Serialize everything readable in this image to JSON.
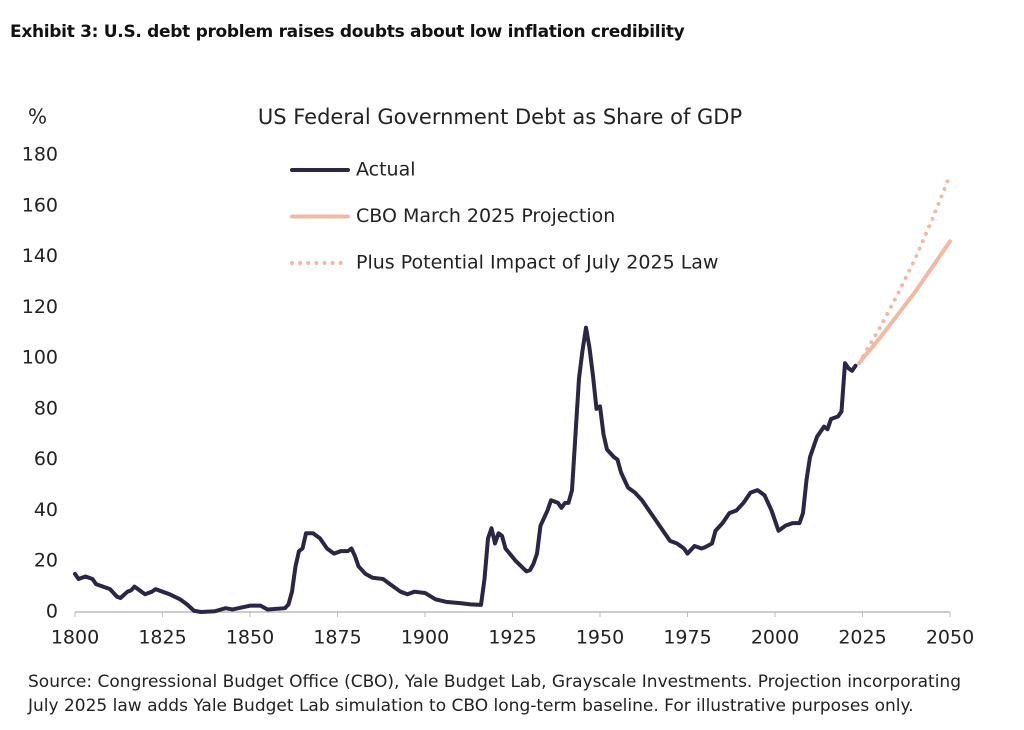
{
  "exhibit_title": "Exhibit 3: U.S. debt problem raises doubts about low inflation credibility",
  "chart_data": {
    "type": "line",
    "title": "US Federal Government Debt as Share of GDP",
    "y_label": "%",
    "xlim": [
      1800,
      2050
    ],
    "xticks": [
      1800,
      1825,
      1850,
      1875,
      1900,
      1925,
      1950,
      1975,
      2000,
      2025,
      2050
    ],
    "ylim": [
      0,
      180
    ],
    "yticks": [
      0,
      20,
      40,
      60,
      80,
      100,
      120,
      140,
      160,
      180
    ],
    "grid": false,
    "legend": "top-left",
    "series": [
      {
        "name": "Actual",
        "color": "#2b2546",
        "style": "solid",
        "x": [
          1800,
          1801,
          1803,
          1805,
          1806,
          1808,
          1810,
          1812,
          1813,
          1815,
          1816,
          1817,
          1818,
          1820,
          1822,
          1823,
          1825,
          1827,
          1830,
          1832,
          1834,
          1836,
          1840,
          1843,
          1845,
          1850,
          1853,
          1855,
          1860,
          1861,
          1862,
          1863,
          1864,
          1865,
          1866,
          1868,
          1870,
          1872,
          1874,
          1876,
          1878,
          1879,
          1880,
          1881,
          1883,
          1885,
          1888,
          1890,
          1893,
          1895,
          1897,
          1900,
          1903,
          1906,
          1910,
          1913,
          1916,
          1917,
          1918,
          1919,
          1920,
          1921,
          1922,
          1923,
          1926,
          1929,
          1930,
          1931,
          1932,
          1933,
          1935,
          1936,
          1938,
          1939,
          1940,
          1941,
          1942,
          1943,
          1944,
          1945,
          1946,
          1947,
          1948,
          1949,
          1950,
          1951,
          1952,
          1954,
          1955,
          1956,
          1957,
          1958,
          1960,
          1962,
          1965,
          1968,
          1970,
          1972,
          1974,
          1975,
          1977,
          1979,
          1980,
          1982,
          1983,
          1985,
          1987,
          1989,
          1991,
          1993,
          1995,
          1997,
          1999,
          2001,
          2003,
          2005,
          2007,
          2008,
          2009,
          2010,
          2012,
          2014,
          2015,
          2016,
          2018,
          2019,
          2020,
          2021,
          2022,
          2023
        ],
        "values": [
          15,
          13,
          14,
          13,
          11,
          10,
          9,
          6,
          5.5,
          8,
          8.5,
          10,
          9,
          7,
          8,
          9,
          8,
          7,
          5,
          3,
          0.5,
          0,
          0.3,
          1.5,
          1,
          2.5,
          2.5,
          1,
          1.5,
          3,
          8,
          18,
          24,
          25,
          31,
          31,
          29,
          25,
          23,
          24,
          24,
          25,
          22,
          18,
          15,
          13.5,
          13,
          11,
          8,
          7,
          8,
          7.5,
          5,
          4,
          3.5,
          3,
          2.8,
          13,
          29,
          33,
          27,
          31,
          30,
          25,
          20,
          16,
          16.5,
          19,
          23,
          34,
          40,
          44,
          43,
          41,
          43,
          43,
          48,
          70,
          92,
          103,
          112,
          104,
          93,
          80,
          81,
          70,
          64,
          61,
          60,
          55,
          52,
          49,
          47,
          44,
          38,
          32,
          28,
          27,
          25,
          23,
          26,
          25,
          25.5,
          27,
          32,
          35,
          39,
          40,
          43,
          47,
          48,
          46,
          40,
          32,
          34,
          35,
          35,
          39,
          52,
          61,
          69,
          73,
          72,
          76,
          77,
          79,
          98,
          96,
          95,
          97
        ]
      },
      {
        "name": "CBO March 2025 Projection",
        "color": "#f2b9a3",
        "style": "solid",
        "x": [
          2024,
          2030,
          2035,
          2040,
          2045,
          2050
        ],
        "values": [
          98,
          108,
          117,
          126,
          136,
          146
        ]
      },
      {
        "name": "Plus Potential Impact of July 2025 Law",
        "color": "#f2b9a3",
        "style": "dotted",
        "x": [
          2024,
          2030,
          2035,
          2040,
          2045,
          2050
        ],
        "values": [
          98,
          112,
          125,
          139,
          155,
          172
        ]
      }
    ]
  },
  "source": "Source: Congressional Budget Office (CBO), Yale Budget Lab, Grayscale Investments. Projection incorporating July 2025 law adds Yale Budget Lab simulation to CBO long-term baseline. For illustrative purposes only."
}
